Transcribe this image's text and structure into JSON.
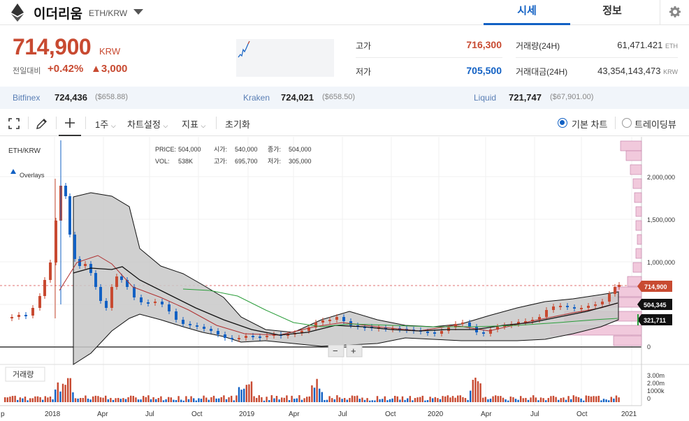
{
  "header": {
    "coin_name": "이더리움",
    "pair": "ETH/KRW",
    "tabs": [
      "시세",
      "정보"
    ]
  },
  "quote": {
    "price": "714,900",
    "unit": "KRW",
    "change_label": "전일대비",
    "change_pct": "+0.42%",
    "change_amt": "▲3,000",
    "high_label": "고가",
    "high": "716,300",
    "low_label": "저가",
    "low": "705,500",
    "volume_label": "거래량(24H)",
    "volume": "61,471.421",
    "volume_unit": "ETH",
    "amount_label": "거래대금(24H)",
    "amount": "43,354,143,473",
    "amount_unit": "KRW"
  },
  "exchanges": [
    {
      "name": "Bitfinex",
      "krw": "724,436",
      "usd": "($658.88)"
    },
    {
      "name": "Kraken",
      "krw": "724,021",
      "usd": "($658.50)"
    },
    {
      "name": "Liquid",
      "krw": "721,747",
      "usd": "($67,901.00)"
    }
  ],
  "toolbar": {
    "interval": "1주",
    "chart_settings": "차트설정",
    "indicators": "지표",
    "reset": "초기화",
    "basic_chart": "기본 차트",
    "trading_view": "트레이딩뷰"
  },
  "chart": {
    "symbol": "ETH/KRW",
    "overlays": "Overlays",
    "legend": {
      "price_label": "PRICE:",
      "price": "504,000",
      "open_label": "시가:",
      "open": "540,000",
      "close_label": "종가:",
      "close": "504,000",
      "vol_label": "VOL:",
      "vol": "538K",
      "high_label": "고가:",
      "high": "695,700",
      "low_label": "저가:",
      "low": "305,000"
    },
    "y_ticks": [
      "2,000,000",
      "1,500,000",
      "1,000,000",
      "0"
    ],
    "price_tags": {
      "current": "714,900",
      "ma_mid": "504,345",
      "ma_low": "321,711"
    },
    "x_ticks": [
      "p",
      "2018",
      "Apr",
      "Jul",
      "Oct",
      "2019",
      "Apr",
      "Jul",
      "Oct",
      "2020",
      "Apr",
      "Jul",
      "Oct",
      "2021"
    ],
    "volume_label": "거래량",
    "vol_ticks": [
      "3.00m",
      "2.00m",
      "1000k",
      "0"
    ],
    "zoom_out": "−",
    "zoom_in": "+"
  },
  "colors": {
    "up": "#c84a31",
    "down": "#1261c4",
    "accent": "#1261c4"
  }
}
